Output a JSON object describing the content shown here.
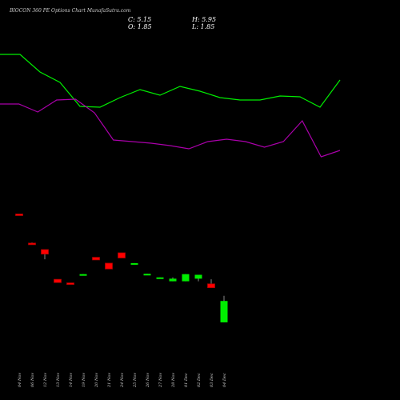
{
  "chart_data": {
    "type": "candlestick",
    "title": "BIOCON 360 PE Options Chart MunafaSutra.com",
    "ohlc_labels": {
      "c": "C: 5.15",
      "h": "H: 5.95",
      "o": "O: 1.85",
      "l": "L: 1.85"
    },
    "categories": [
      "04 Nov",
      "06 Nov",
      "12 Nov",
      "13 Nov",
      "14 Nov",
      "19 Nov",
      "20 Nov",
      "21 Nov",
      "24 Nov",
      "25 Nov",
      "26 Nov",
      "27 Nov",
      "28 Nov",
      "01 Dec",
      "02 Dec",
      "03 Dec",
      "04 Dec"
    ],
    "candles": [
      {
        "o": 18.6,
        "h": 18.6,
        "c": 18.5,
        "l": 18.5
      },
      {
        "o": 14.1,
        "h": 14.2,
        "c": 14.0,
        "l": 14.0
      },
      {
        "o": 13.1,
        "h": 13.1,
        "c": 12.4,
        "l": 11.6
      },
      {
        "o": 8.5,
        "h": 8.5,
        "c": 8.0,
        "l": 8.0
      },
      {
        "o": 7.95,
        "h": 7.95,
        "c": 7.9,
        "l": 7.9
      },
      {
        "o": 9.1,
        "h": 9.3,
        "c": 9.3,
        "l": 9.1
      },
      {
        "o": 11.9,
        "h": 11.9,
        "c": 11.5,
        "l": 11.5
      },
      {
        "o": 11.0,
        "h": 11.0,
        "c": 10.1,
        "l": 10.1
      },
      {
        "o": 12.6,
        "h": 12.6,
        "c": 11.8,
        "l": 11.8
      },
      {
        "o": 10.95,
        "h": 11.0,
        "c": 11.0,
        "l": 10.95
      },
      {
        "o": 9.3,
        "h": 9.35,
        "c": 9.35,
        "l": 9.3
      },
      {
        "o": 8.7,
        "h": 8.8,
        "c": 8.8,
        "l": 8.7
      },
      {
        "o": 8.2,
        "h": 8.8,
        "c": 8.6,
        "l": 8.2
      },
      {
        "o": 8.2,
        "h": 9.3,
        "c": 9.3,
        "l": 8.2
      },
      {
        "o": 8.6,
        "h": 9.2,
        "c": 9.2,
        "l": 8.2
      },
      {
        "o": 7.8,
        "h": 8.5,
        "c": 7.2,
        "l": 7.2
      },
      {
        "o": 1.85,
        "h": 5.95,
        "c": 5.15,
        "l": 1.85
      }
    ],
    "ylim": [
      -1.5,
      22
    ],
    "overlay_lines": [
      {
        "color": "#00ee00",
        "values": [
          92,
          92,
          70,
          57,
          27,
          26,
          38,
          48,
          41,
          52,
          46,
          38,
          35,
          35,
          40,
          39,
          26,
          60
        ]
      },
      {
        "color": "#aa00aa",
        "values": [
          30,
          30,
          20,
          35,
          36,
          19,
          -15,
          -17,
          -19,
          -22,
          -26,
          -17,
          -14,
          -17,
          -24,
          -17,
          9,
          -36,
          -28
        ]
      }
    ],
    "overlay_ylim": [
      -100,
      120
    ],
    "colors": {
      "up": "#00ee00",
      "down": "#ff0000",
      "background": "#000000",
      "text": "#ffffff"
    }
  }
}
